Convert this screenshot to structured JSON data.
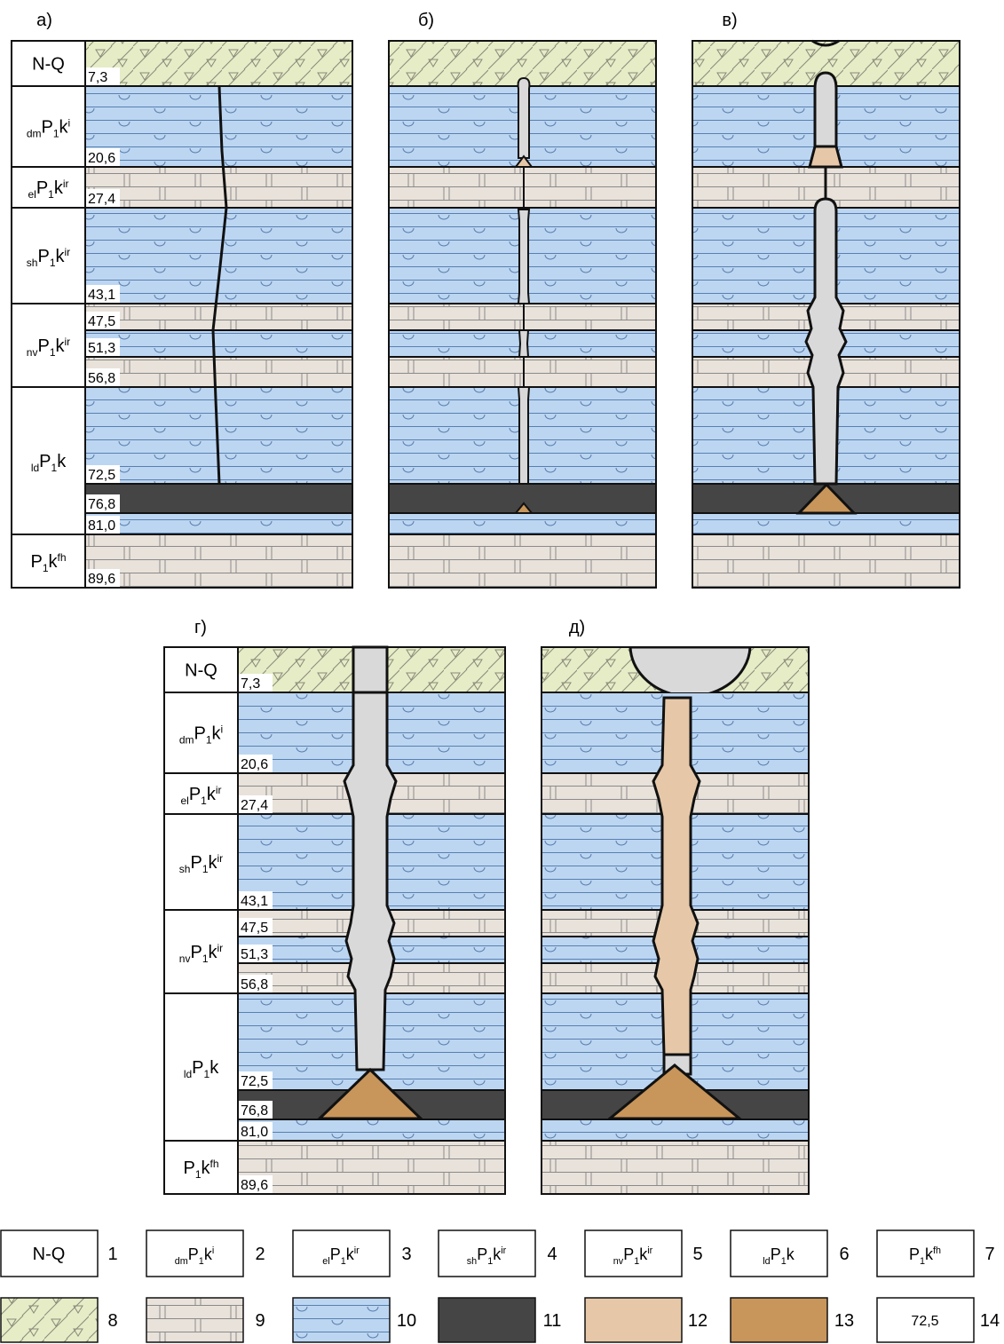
{
  "panel_labels": [
    "а)",
    "б)",
    "в)",
    "г)",
    "д)"
  ],
  "formations": [
    {
      "name": "N-Q"
    },
    {
      "pre": "dm",
      "base": "P",
      "idx": "1",
      "stem": "k",
      "sup": "i"
    },
    {
      "pre": "el",
      "base": "P",
      "idx": "1",
      "stem": "k",
      "sup": "ir"
    },
    {
      "pre": "sh",
      "base": "P",
      "idx": "1",
      "stem": "k",
      "sup": "ir"
    },
    {
      "pre": "nv",
      "base": "P",
      "idx": "1",
      "stem": "k",
      "sup": "ir"
    },
    {
      "pre": "ld",
      "base": "P",
      "idx": "1",
      "stem": "k"
    },
    {
      "base": "P",
      "idx": "1",
      "stem": "k",
      "sup": "fh"
    }
  ],
  "depths": [
    "7,3",
    "20,6",
    "27,4",
    "43,1",
    "47,5",
    "51,3",
    "56,8",
    "72,5",
    "76,8",
    "81,0",
    "89,6"
  ],
  "legend": {
    "numbers": [
      "1",
      "2",
      "3",
      "4",
      "5",
      "6",
      "7",
      "8",
      "9",
      "10",
      "11",
      "12",
      "13",
      "14"
    ],
    "sample_depth": "72,5"
  }
}
